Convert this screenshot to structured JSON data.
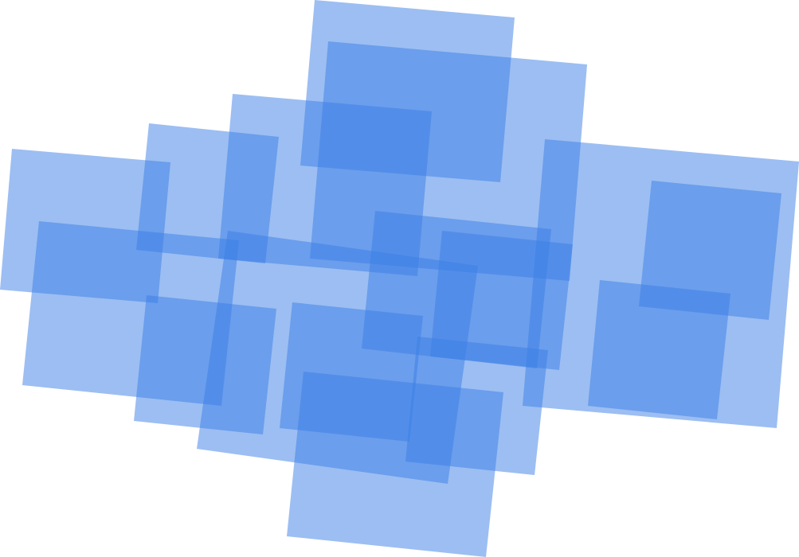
{
  "artwork": {
    "shape_color": "#3a7ee6",
    "background_color": "#ffffff"
  }
}
